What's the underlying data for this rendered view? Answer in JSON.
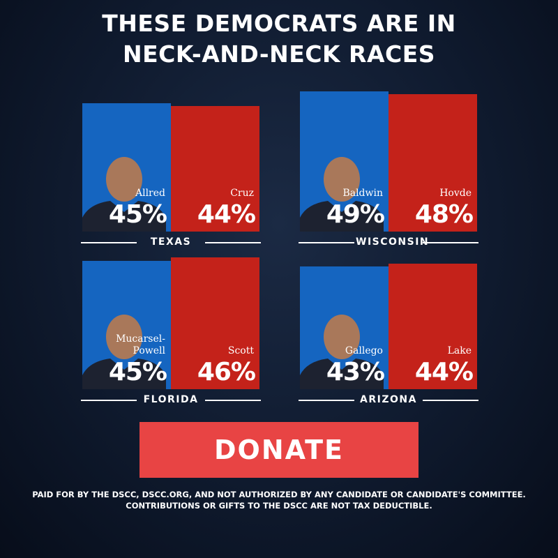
{
  "title": [
    "THESE DEMOCRATS ARE IN",
    "NECK-AND-NECK RACES"
  ],
  "chart_data": [
    {
      "type": "bar",
      "title": "TEXAS",
      "categories": [
        "Allred",
        "Cruz"
      ],
      "values": [
        45,
        44
      ],
      "value_labels": [
        "45%",
        "44%"
      ],
      "colors": [
        "#1565c0",
        "#c4221a"
      ]
    },
    {
      "type": "bar",
      "title": "WISCONSIN",
      "categories": [
        "Baldwin",
        "Hovde"
      ],
      "values": [
        49,
        48
      ],
      "value_labels": [
        "49%",
        "48%"
      ],
      "colors": [
        "#1565c0",
        "#c4221a"
      ]
    },
    {
      "type": "bar",
      "title": "FLORIDA",
      "categories": [
        "Mucarsel-Powell",
        "Scott"
      ],
      "values": [
        45,
        46
      ],
      "value_labels": [
        "45%",
        "46%"
      ],
      "colors": [
        "#1565c0",
        "#c4221a"
      ]
    },
    {
      "type": "bar",
      "title": "ARIZONA",
      "categories": [
        "Gallego",
        "Lake"
      ],
      "values": [
        43,
        44
      ],
      "value_labels": [
        "43%",
        "44%"
      ],
      "colors": [
        "#1565c0",
        "#c4221a"
      ]
    }
  ],
  "button": "DONATE",
  "disclaimer": [
    "PAID FOR BY THE DSCC, DSCC.ORG, AND NOT AUTHORIZED BY ANY CANDIDATE OR CANDIDATE'S COMMITTEE.",
    "CONTRIBUTIONS OR GIFTS TO THE DSCC ARE NOT TAX DEDUCTIBLE."
  ]
}
